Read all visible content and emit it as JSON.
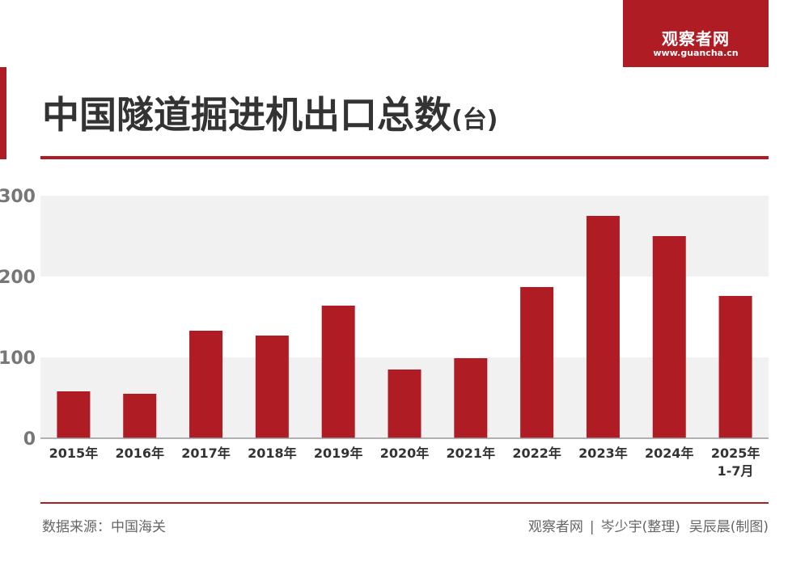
{
  "brand": {
    "name": "观察者网",
    "url": "www.guancha.cn",
    "color": "#b01c24"
  },
  "title": {
    "main": "中国隧道掘进机出口总数",
    "unit": "(台)"
  },
  "chart_data": {
    "type": "bar",
    "title": "中国隧道掘进机出口总数(台)",
    "categories": [
      "2015年",
      "2016年",
      "2017年",
      "2018年",
      "2019年",
      "2020年",
      "2021年",
      "2022年",
      "2023年",
      "2024年",
      "2025年\n1-7月"
    ],
    "values": [
      58,
      55,
      133,
      127,
      164,
      85,
      99,
      187,
      275,
      250,
      176
    ],
    "ylim": [
      0,
      300
    ],
    "yticks": [
      0,
      100,
      200,
      300
    ],
    "bar_color": "#b01c24",
    "grid": "alternating horizontal bands",
    "xlabel": "",
    "ylabel": ""
  },
  "footer": {
    "source": "数据来源：中国海关",
    "credit_org": "观察者网",
    "separator": "|",
    "credit_editor": "岑少宇(整理)",
    "credit_designer": "吴辰晨(制图)"
  }
}
